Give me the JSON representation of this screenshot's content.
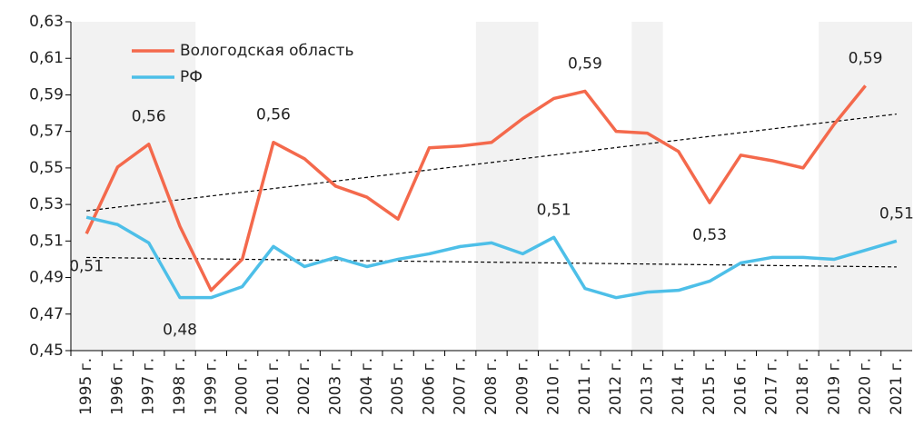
{
  "chart_data": {
    "type": "line",
    "categories": [
      "1995 г.",
      "1996 г.",
      "1997 г.",
      "1998 г.",
      "1999 г.",
      "2000 г.",
      "2001 г.",
      "2002 г.",
      "2003 г.",
      "2004 г.",
      "2005 г.",
      "2006 г.",
      "2007 г.",
      "2008 г.",
      "2009 г.",
      "2010 г.",
      "2011 г.",
      "2012 г.",
      "2013 г.",
      "2014 г.",
      "2015 г.",
      "2016 г.",
      "2017 г.",
      "2018 г.",
      "2019 г.",
      "2020 г.",
      "2021 г."
    ],
    "series": [
      {
        "name": "Вологодская область",
        "color": "#f4694c",
        "values": [
          0.514,
          0.5505,
          0.563,
          0.518,
          0.483,
          0.5,
          0.564,
          0.555,
          0.54,
          0.534,
          0.522,
          0.561,
          0.562,
          0.564,
          0.577,
          0.588,
          0.592,
          0.57,
          0.569,
          0.559,
          0.531,
          0.557,
          0.554,
          0.55,
          0.574,
          0.595,
          null
        ],
        "value_labels": [
          "0,51",
          null,
          "0,56",
          null,
          null,
          null,
          "0,56",
          null,
          null,
          null,
          null,
          null,
          null,
          null,
          null,
          null,
          "0,59",
          null,
          null,
          null,
          "0,53",
          null,
          null,
          null,
          null,
          "0,59",
          null
        ],
        "trend": {
          "start": 0.5265,
          "end": 0.5795
        }
      },
      {
        "name": "РФ",
        "color": "#4dbfe8",
        "values": [
          0.523,
          0.519,
          0.509,
          0.479,
          0.479,
          0.485,
          0.507,
          0.496,
          0.501,
          0.496,
          0.5,
          0.503,
          0.507,
          0.509,
          0.503,
          0.512,
          0.484,
          0.479,
          0.482,
          0.483,
          0.488,
          0.498,
          0.501,
          0.501,
          0.5,
          0.505,
          0.51
        ],
        "value_labels": [
          null,
          null,
          null,
          "0,48",
          null,
          null,
          null,
          null,
          null,
          null,
          null,
          null,
          null,
          null,
          null,
          "0,51",
          null,
          null,
          null,
          null,
          null,
          null,
          null,
          null,
          null,
          null,
          "0,51"
        ],
        "trend": {
          "start": 0.501,
          "end": 0.4958
        }
      }
    ],
    "shaded_ranges": [
      [
        "1995 г.",
        "1998 г."
      ],
      [
        "2008 г.",
        "2009 г."
      ],
      [
        "2013 г.",
        "2013 г."
      ],
      [
        "2019 г.",
        "2021 г."
      ]
    ],
    "shade_color": "#f2f2f2",
    "ylim": [
      0.45,
      0.63
    ],
    "yticks": [
      {
        "value": 0.45,
        "label": "0,45"
      },
      {
        "value": 0.47,
        "label": "0,47"
      },
      {
        "value": 0.49,
        "label": "0,49"
      },
      {
        "value": 0.51,
        "label": "0,51"
      },
      {
        "value": 0.53,
        "label": "0,53"
      },
      {
        "value": 0.55,
        "label": "0,55"
      },
      {
        "value": 0.57,
        "label": "0,57"
      },
      {
        "value": 0.59,
        "label": "0,59"
      },
      {
        "value": 0.61,
        "label": "0,61"
      },
      {
        "value": 0.63,
        "label": "0,63"
      }
    ],
    "legend": "top-left"
  }
}
